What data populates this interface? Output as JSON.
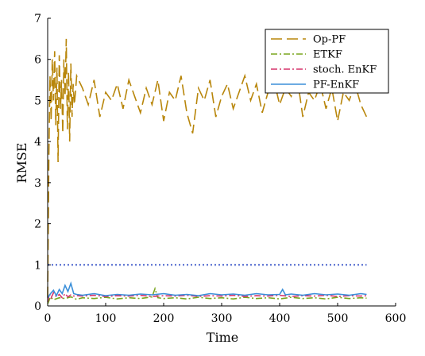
{
  "chart_data": {
    "type": "line",
    "title": "",
    "xlabel": "Time",
    "ylabel": "RMSE",
    "xlim": [
      0,
      600
    ],
    "ylim": [
      0,
      7
    ],
    "xticks": [
      0,
      100,
      200,
      300,
      400,
      500,
      600
    ],
    "yticks": [
      0,
      1,
      2,
      3,
      4,
      5,
      6,
      7
    ],
    "grid": false,
    "legend_position": "top-right",
    "series": [
      {
        "name": "Op-PF",
        "color": "#b8860b",
        "dash": "long-dash",
        "x": [
          0,
          2,
          4,
          6,
          8,
          10,
          12,
          14,
          16,
          18,
          20,
          22,
          24,
          26,
          28,
          30,
          32,
          34,
          36,
          38,
          40,
          42,
          44,
          46,
          48,
          50,
          60,
          70,
          80,
          90,
          100,
          110,
          120,
          130,
          140,
          150,
          160,
          170,
          180,
          190,
          200,
          210,
          220,
          230,
          240,
          250,
          260,
          270,
          280,
          290,
          300,
          310,
          320,
          330,
          340,
          350,
          360,
          370,
          380,
          390,
          400,
          410,
          420,
          430,
          440,
          450,
          460,
          470,
          480,
          490,
          500,
          510,
          520,
          530,
          540,
          550
        ],
        "y": [
          0.2,
          3.6,
          5.6,
          4.5,
          6.0,
          5.0,
          6.2,
          4.4,
          5.8,
          3.5,
          6.1,
          4.8,
          5.5,
          4.2,
          6.0,
          5.1,
          6.5,
          4.3,
          5.7,
          4.0,
          5.9,
          4.6,
          5.4,
          4.9,
          5.2,
          5.6,
          5.3,
          4.9,
          5.5,
          4.6,
          5.2,
          5.0,
          5.4,
          4.8,
          5.5,
          5.1,
          4.7,
          5.3,
          4.9,
          5.5,
          4.5,
          5.2,
          5.0,
          5.6,
          4.7,
          4.2,
          5.3,
          5.0,
          5.5,
          4.6,
          5.1,
          5.4,
          4.8,
          5.2,
          5.6,
          5.0,
          5.4,
          4.7,
          5.2,
          5.5,
          4.9,
          5.3,
          5.1,
          5.6,
          4.6,
          5.2,
          5.0,
          5.4,
          4.8,
          5.3,
          4.5,
          5.2,
          5.0,
          5.4,
          4.9,
          4.6
        ]
      },
      {
        "name": "ETKF",
        "color": "#7aa61f",
        "dash": "dash-dot",
        "x": [
          0,
          5,
          10,
          20,
          30,
          40,
          50,
          60,
          80,
          100,
          120,
          140,
          160,
          180,
          185,
          190,
          200,
          220,
          240,
          260,
          280,
          300,
          320,
          340,
          360,
          380,
          400,
          420,
          440,
          460,
          480,
          500,
          520,
          540,
          550
        ],
        "y": [
          0.05,
          0.22,
          0.15,
          0.2,
          0.18,
          0.22,
          0.16,
          0.2,
          0.18,
          0.21,
          0.17,
          0.2,
          0.18,
          0.22,
          0.42,
          0.2,
          0.18,
          0.2,
          0.17,
          0.21,
          0.18,
          0.2,
          0.17,
          0.21,
          0.18,
          0.2,
          0.17,
          0.21,
          0.18,
          0.2,
          0.17,
          0.21,
          0.18,
          0.2,
          0.19
        ]
      },
      {
        "name": "stoch. EnKF",
        "color": "#d6336c",
        "dash": "dash-dot",
        "x": [
          0,
          3,
          6,
          10,
          15,
          20,
          25,
          30,
          35,
          40,
          45,
          50,
          60,
          80,
          100,
          120,
          140,
          160,
          180,
          200,
          220,
          240,
          260,
          280,
          300,
          320,
          340,
          360,
          380,
          400,
          420,
          440,
          460,
          480,
          500,
          520,
          540,
          550
        ],
        "y": [
          0.1,
          0.3,
          0.2,
          0.32,
          0.22,
          0.28,
          0.2,
          0.3,
          0.22,
          0.27,
          0.24,
          0.25,
          0.24,
          0.26,
          0.23,
          0.25,
          0.24,
          0.26,
          0.23,
          0.25,
          0.24,
          0.26,
          0.23,
          0.25,
          0.24,
          0.26,
          0.23,
          0.25,
          0.24,
          0.26,
          0.23,
          0.25,
          0.24,
          0.26,
          0.23,
          0.25,
          0.24,
          0.25
        ]
      },
      {
        "name": "PF-EnKF",
        "color": "#3b8fd9",
        "dash": "solid",
        "x": [
          0,
          5,
          10,
          15,
          20,
          25,
          30,
          35,
          40,
          45,
          50,
          60,
          80,
          100,
          120,
          140,
          160,
          180,
          200,
          220,
          240,
          260,
          280,
          300,
          320,
          340,
          360,
          380,
          400,
          405,
          410,
          420,
          440,
          460,
          480,
          500,
          520,
          540,
          550
        ],
        "y": [
          0.2,
          0.3,
          0.38,
          0.25,
          0.4,
          0.3,
          0.5,
          0.35,
          0.55,
          0.3,
          0.28,
          0.26,
          0.3,
          0.25,
          0.28,
          0.26,
          0.29,
          0.27,
          0.3,
          0.26,
          0.28,
          0.25,
          0.3,
          0.27,
          0.29,
          0.26,
          0.3,
          0.27,
          0.28,
          0.4,
          0.27,
          0.29,
          0.26,
          0.3,
          0.27,
          0.29,
          0.26,
          0.3,
          0.28
        ]
      },
      {
        "name": "",
        "color": "#6a7fd6",
        "dash": "dotted",
        "x": [
          0,
          550
        ],
        "y": [
          1.0,
          1.0
        ]
      }
    ]
  }
}
